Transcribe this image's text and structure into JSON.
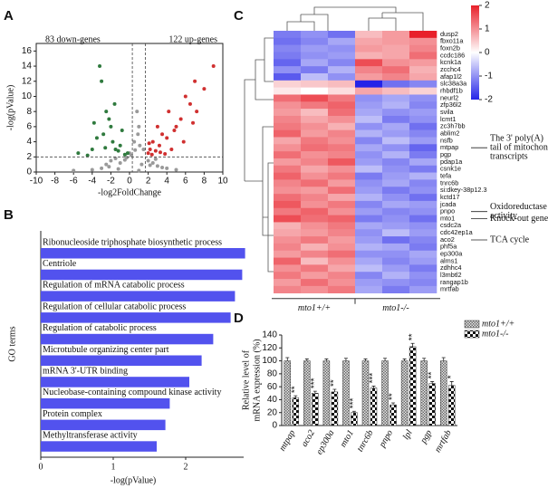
{
  "chart_data": [
    {
      "type": "scatter",
      "panel": "A",
      "xlabel": "-log2FoldChange",
      "ylabel": "-log(pValue)",
      "xlim": [
        -10,
        10
      ],
      "ylim": [
        0,
        17
      ],
      "xticks": [
        -10,
        -8,
        -6,
        -4,
        -2,
        0,
        2,
        4,
        6,
        8,
        10
      ],
      "yticks": [
        0,
        2,
        4,
        6,
        8,
        10,
        12,
        14,
        16
      ],
      "reference_lines": {
        "x": [
          0.3,
          1.7
        ],
        "y": 2
      },
      "annotations": [
        {
          "text": "83 down-genes",
          "color": "#2f7a3e"
        },
        {
          "text": "122 up-genes",
          "color": "#d03030"
        }
      ],
      "series": [
        {
          "color": "#9a9a9a",
          "x": [
            -3,
            -2.5,
            -2,
            -1.5,
            -1,
            -0.5,
            0,
            0.5,
            1,
            1.5,
            2,
            2.5,
            3,
            3.5,
            -1.2,
            0.8,
            1.1,
            0.2,
            -0.3,
            2.2,
            2.8,
            -2.2,
            4,
            -4,
            1.0,
            0.6,
            1.3,
            0.9,
            -6,
            5
          ],
          "y": [
            0.5,
            1,
            1.5,
            1.8,
            1.2,
            1.6,
            2.5,
            4,
            6,
            3,
            1.5,
            1.2,
            0.8,
            0.6,
            0.4,
            8,
            3.5,
            2.2,
            1.9,
            0.9,
            1.7,
            0.7,
            0.5,
            0.3,
            0.2,
            2.9,
            1.0,
            5.0,
            0.2,
            0.3
          ]
        },
        {
          "color": "#2f7a3e",
          "x": [
            -5.5,
            -4,
            -3.2,
            -3,
            -2.8,
            -2.5,
            -2,
            -1.8,
            -1.5,
            -1.2,
            -1,
            -0.8,
            -0.5,
            -3.5,
            -2.2,
            -4.5,
            -1.6,
            -0.2,
            -2.6,
            -3.8
          ],
          "y": [
            2.5,
            3,
            14,
            12,
            5,
            8,
            6,
            4,
            3,
            2.8,
            3.5,
            5.5,
            2.3,
            4.5,
            7,
            2.2,
            9,
            2.5,
            3.2,
            6.5
          ]
        },
        {
          "color": "#d03030",
          "x": [
            2,
            2.2,
            2.5,
            2.8,
            3,
            3.2,
            3.5,
            4,
            4.2,
            4.5,
            5,
            5.5,
            6,
            6.5,
            7,
            7.2,
            8,
            9,
            2.4,
            3.3,
            2.1,
            4.8,
            5.8,
            6.8,
            3.8
          ],
          "y": [
            2.5,
            3,
            4,
            2.8,
            6,
            3.5,
            5,
            4.5,
            8,
            3,
            6,
            7,
            10,
            9,
            12,
            8,
            11,
            14,
            2.3,
            2.6,
            3.8,
            5.5,
            4,
            6.5,
            2.4
          ]
        }
      ]
    },
    {
      "type": "bar",
      "orientation": "horizontal",
      "panel": "B",
      "xlabel": "-log(pValue)",
      "ylabel": "GO terms",
      "color": "#5252ee",
      "categories": [
        "Ribonucleoside triphosphate biosynthetic process",
        "Centriole",
        "Regulation of mRNA catabolic process",
        "Regulation of cellular catabolic process",
        "Regulation of catabolic process",
        "Microtubule organizing center part",
        "mRNA 3'-UTR binding",
        "Nucleobase-containing compound kinase activity",
        "Protein complex",
        "Methyltransferase activity"
      ],
      "values": [
        2.82,
        2.78,
        2.68,
        2.62,
        2.38,
        2.22,
        2.05,
        1.78,
        1.72,
        1.6
      ],
      "xlim": [
        0,
        2.8
      ],
      "xticks": [
        0,
        1,
        2
      ]
    },
    {
      "type": "heatmap",
      "panel": "C",
      "rows": [
        "dusp2",
        "fbxo11a",
        "foxn2b",
        "ccdc186",
        "kcnk1a",
        "zcchc4",
        "afap1l2",
        "slc38a3a",
        "rhbdf1b",
        "neurl2",
        "zfp36l2",
        "svila",
        "lcmt1",
        "zc3h7bb",
        "ablim2",
        "nsfb",
        "mtpap",
        "pgp",
        "pdap1a",
        "csnk1e",
        "tefa",
        "tnrc6b",
        "si:dkey-38p12.3",
        "kctd17",
        "jcada",
        "pnpo",
        "mto1",
        "csdc2a",
        "cdc42ep1a",
        "aco2",
        "phf5a",
        "ep300a",
        "alms1",
        "zdhhc4",
        "l3mbtl2",
        "rangap1b",
        "mrtfab"
      ],
      "groups": [
        "mto1+/+",
        "mto1-/-"
      ],
      "values": [
        [
          -1.2,
          -1.0,
          -1.3,
          0.6,
          0.9,
          2.0
        ],
        [
          -1.3,
          -1.1,
          -0.8,
          0.8,
          0.9,
          1.0
        ],
        [
          -1.1,
          -0.9,
          -1.0,
          0.9,
          0.8,
          1.1
        ],
        [
          -1.2,
          -1.0,
          -0.9,
          0.7,
          0.8,
          1.3
        ],
        [
          -1.4,
          -0.8,
          -1.1,
          1.6,
          1.0,
          0.9
        ],
        [
          -1.0,
          -1.2,
          -0.7,
          1.1,
          1.3,
          0.7
        ],
        [
          -1.5,
          -0.6,
          -1.0,
          0.9,
          1.1,
          0.8
        ],
        [
          0.4,
          0.5,
          0.6,
          -2.0,
          -1.3,
          -1.1
        ],
        [
          0.2,
          0.0,
          0.3,
          0.8,
          0.6,
          0.4
        ],
        [
          1.3,
          1.6,
          1.2,
          -1.0,
          -0.8,
          -1.0
        ],
        [
          1.0,
          1.2,
          1.4,
          -0.9,
          -0.7,
          -1.1
        ],
        [
          0.9,
          0.6,
          1.3,
          -0.8,
          -1.0,
          -0.9
        ],
        [
          1.1,
          0.8,
          1.0,
          -0.6,
          -1.2,
          -1.0
        ],
        [
          1.2,
          1.0,
          0.7,
          -1.0,
          -0.8,
          -1.3
        ],
        [
          1.4,
          0.9,
          1.1,
          -0.7,
          -0.9,
          -1.1
        ],
        [
          0.8,
          1.2,
          1.0,
          -1.1,
          -0.6,
          -0.9
        ],
        [
          1.0,
          1.3,
          1.2,
          -0.8,
          -1.0,
          -1.4
        ],
        [
          1.3,
          1.0,
          1.1,
          -1.0,
          -0.7,
          -1.2
        ],
        [
          0.9,
          1.1,
          1.5,
          -0.9,
          -1.1,
          -0.8
        ],
        [
          1.2,
          0.8,
          1.0,
          -0.6,
          -1.0,
          -1.2
        ],
        [
          1.4,
          1.0,
          1.2,
          -1.2,
          -0.9,
          -0.7
        ],
        [
          1.1,
          1.3,
          0.9,
          -1.0,
          -0.8,
          -1.1
        ],
        [
          1.0,
          0.9,
          1.3,
          -0.9,
          -1.2,
          -1.0
        ],
        [
          1.3,
          1.1,
          0.8,
          -0.7,
          -1.0,
          -1.3
        ],
        [
          1.5,
          1.0,
          1.2,
          -1.1,
          -0.8,
          -0.9
        ],
        [
          1.2,
          1.4,
          1.0,
          -0.9,
          -1.1,
          -1.0
        ],
        [
          1.6,
          1.3,
          1.4,
          -1.2,
          -1.0,
          -1.3
        ],
        [
          0.7,
          1.0,
          1.2,
          -0.8,
          -0.9,
          -1.0
        ],
        [
          0.8,
          0.9,
          1.1,
          -1.0,
          -0.6,
          -0.9
        ],
        [
          1.0,
          1.2,
          0.9,
          -0.9,
          -1.3,
          -1.1
        ],
        [
          1.1,
          0.7,
          1.0,
          -0.7,
          -0.8,
          -1.2
        ],
        [
          0.9,
          1.1,
          1.3,
          -1.0,
          -1.0,
          -0.8
        ],
        [
          1.4,
          0.6,
          1.0,
          -0.8,
          -1.1,
          -0.9
        ],
        [
          1.0,
          1.2,
          0.8,
          -0.6,
          -0.9,
          -1.2
        ],
        [
          1.2,
          0.9,
          1.1,
          -1.1,
          -0.7,
          -1.0
        ],
        [
          0.9,
          1.3,
          1.0,
          -0.9,
          -1.0,
          -1.1
        ],
        [
          1.1,
          1.0,
          1.2,
          -0.8,
          -1.2,
          -0.9
        ]
      ],
      "colorbar": {
        "lim": [
          -2,
          2
        ],
        "ticks": [
          2,
          1,
          0,
          -1,
          -2
        ],
        "low": "#2323e8",
        "mid": "#ffffff",
        "high": "#e8202a"
      },
      "annotations": [
        {
          "lines": [
            "The 3' poly(A)",
            "tail of  mitochondrial",
            "transcripts"
          ]
        },
        {
          "lines": [
            "Oxidoreductase",
            "activity"
          ]
        },
        {
          "lines": [
            "Knock-out gene"
          ]
        },
        {
          "lines": [
            "TCA cycle"
          ]
        }
      ]
    },
    {
      "type": "bar",
      "orientation": "vertical",
      "panel": "D",
      "ylabel": [
        "Relative level of",
        "mRNA expression (%)"
      ],
      "categories": [
        "mtpap",
        "aco2",
        "ep300a",
        "mto1",
        "tnrc6b",
        "pnpo",
        "lpl",
        "pgp",
        "mrtfab"
      ],
      "ylim": [
        0,
        140
      ],
      "yticks": [
        0,
        20,
        40,
        60,
        80,
        100,
        120,
        140
      ],
      "series": [
        {
          "name": "mto1+/+",
          "pattern": "crosshatch",
          "values": [
            100,
            100,
            100,
            100,
            100,
            100,
            100,
            100,
            100
          ],
          "errors": [
            5,
            3,
            3,
            4,
            3,
            4,
            3,
            4,
            5
          ]
        },
        {
          "name": "mto1-/-",
          "pattern": "checker",
          "values": [
            43,
            50,
            52,
            20,
            58,
            32,
            122,
            65,
            62
          ],
          "errors": [
            3,
            3,
            4,
            2,
            3,
            3,
            5,
            3,
            6
          ]
        }
      ],
      "significance": [
        "**",
        "***",
        "**",
        "***",
        "***",
        "**",
        "**",
        "**",
        "*"
      ]
    }
  ]
}
